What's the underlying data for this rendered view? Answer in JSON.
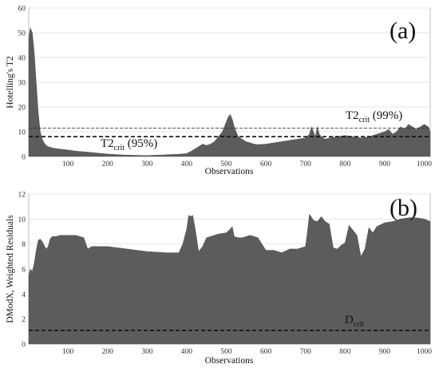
{
  "chart_data": [
    {
      "id": "a",
      "type": "area",
      "panel_label": "(a)",
      "ylabel": "Hotelling's T2",
      "xlabel": "Observations",
      "xlim": [
        1,
        1015
      ],
      "ylim": [
        0,
        60
      ],
      "x_ticks": [
        100,
        200,
        300,
        400,
        500,
        600,
        700,
        800,
        900,
        1000
      ],
      "y_ticks": [
        0,
        10,
        20,
        30,
        40,
        50,
        60
      ],
      "grid": true,
      "series": [
        {
          "x": [
            1,
            5,
            10,
            15,
            20,
            25,
            30,
            35,
            40,
            45,
            50,
            60,
            70,
            80,
            90,
            100,
            120,
            140,
            160,
            180,
            200,
            220,
            240,
            260,
            280,
            300,
            320,
            340,
            360,
            380,
            400,
            410,
            420,
            430,
            440,
            450,
            460,
            470,
            480,
            490,
            495,
            500,
            505,
            510,
            515,
            520,
            525,
            530,
            540,
            550,
            560,
            570,
            580,
            600,
            620,
            640,
            660,
            680,
            700,
            710,
            715,
            720,
            725,
            730,
            735,
            740,
            745,
            750,
            760,
            780,
            800,
            820,
            840,
            860,
            880,
            900,
            910,
            920,
            930,
            940,
            950,
            960,
            970,
            980,
            990,
            1000,
            1010,
            1015
          ],
          "values": [
            48,
            52,
            50,
            42,
            30,
            18,
            10,
            7,
            5.5,
            4.5,
            4,
            3.5,
            3.2,
            3,
            2.8,
            2.6,
            2.2,
            1.9,
            1.6,
            1.3,
            1,
            0.8,
            0.6,
            0.5,
            0.45,
            0.4,
            0.5,
            0.6,
            0.8,
            0.9,
            1.2,
            2,
            3,
            4,
            5,
            4.5,
            5,
            6,
            8,
            10,
            12,
            14,
            16,
            17,
            15,
            12,
            10,
            8,
            7,
            6,
            5.5,
            5,
            4.8,
            5,
            5.5,
            6,
            6.5,
            7,
            7.5,
            9,
            12,
            10,
            8,
            12,
            9,
            8,
            7.5,
            7,
            7.5,
            8,
            8.5,
            8,
            7.5,
            8,
            9,
            10,
            11,
            9,
            10,
            12,
            11,
            13,
            12,
            11,
            12,
            13,
            12,
            10
          ]
        }
      ],
      "thresholds": [
        {
          "label_main": "T2",
          "label_sub": "crit",
          "label_tail": " (99%)",
          "value": 11.5,
          "style": "thin-dashed"
        },
        {
          "label_main": "T2",
          "label_sub": "crit",
          "label_tail": " (95%)",
          "value": 8,
          "style": "bold-dashed"
        }
      ]
    },
    {
      "id": "b",
      "type": "area",
      "panel_label": "(b)",
      "ylabel": "DModX, Weighted Residuals",
      "xlabel": "Observations",
      "xlim": [
        1,
        1015
      ],
      "ylim": [
        0,
        12
      ],
      "x_ticks": [
        100,
        200,
        300,
        400,
        500,
        600,
        700,
        800,
        900,
        1000
      ],
      "y_ticks": [
        0,
        2,
        4,
        6,
        8,
        10,
        12
      ],
      "grid": true,
      "series": [
        {
          "x": [
            1,
            5,
            10,
            15,
            20,
            25,
            30,
            35,
            40,
            45,
            50,
            55,
            60,
            70,
            80,
            100,
            120,
            140,
            150,
            160,
            200,
            250,
            300,
            350,
            380,
            390,
            400,
            405,
            410,
            415,
            420,
            425,
            430,
            440,
            450,
            460,
            480,
            500,
            510,
            515,
            520,
            530,
            540,
            560,
            580,
            600,
            620,
            640,
            660,
            680,
            700,
            705,
            710,
            720,
            730,
            740,
            750,
            760,
            770,
            780,
            790,
            800,
            810,
            820,
            830,
            840,
            850,
            860,
            870,
            880,
            900,
            920,
            940,
            960,
            980,
            1000,
            1015
          ],
          "values": [
            5.5,
            6,
            5.8,
            6.5,
            7.5,
            8.3,
            8.4,
            8.2,
            7.9,
            7.6,
            7.8,
            8.4,
            8.6,
            8.6,
            8.7,
            8.7,
            8.7,
            8.5,
            7.6,
            7.8,
            7.8,
            7.6,
            7.4,
            7.3,
            7.3,
            8,
            9.2,
            10.3,
            10.2,
            10.3,
            9.5,
            8.5,
            7.4,
            7.8,
            8.5,
            8.6,
            8.8,
            8.9,
            9.2,
            9.4,
            8.6,
            8.5,
            8.5,
            8.7,
            8.5,
            7.5,
            7.5,
            7.3,
            7.6,
            7.6,
            7.8,
            9,
            10.4,
            9.9,
            9.8,
            10.2,
            9.8,
            9.6,
            7.7,
            7.6,
            7.9,
            8.1,
            9.5,
            9.1,
            8.7,
            7,
            7.6,
            9.3,
            8.9,
            9.4,
            9.7,
            9.8,
            10,
            10.1,
            10.1,
            10,
            9.8
          ]
        }
      ],
      "thresholds": [
        {
          "label_main": "D",
          "label_sub": "crit",
          "label_tail": "",
          "value": 1.1,
          "style": "bold-dashed"
        }
      ]
    }
  ]
}
